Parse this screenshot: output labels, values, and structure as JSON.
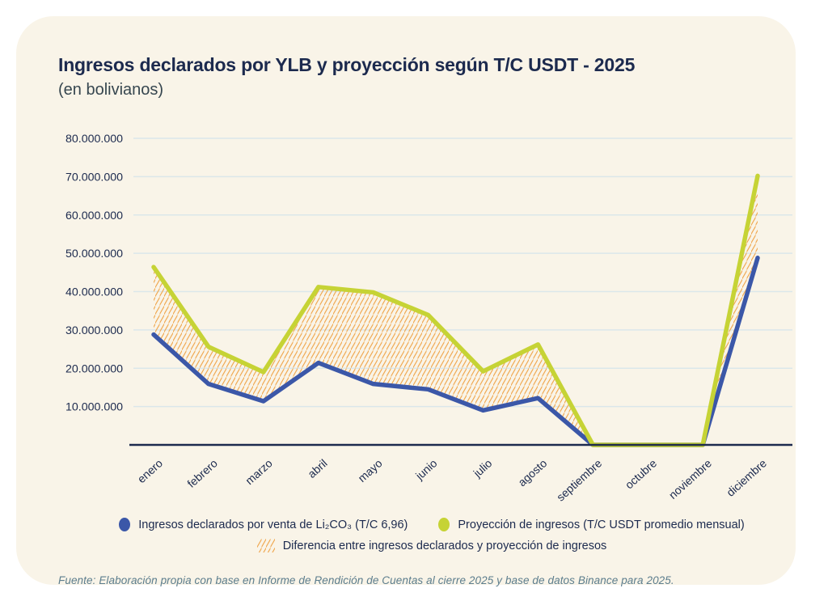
{
  "card": {
    "title": "Ingresos declarados por YLB y proyección según T/C USDT - 2025",
    "subtitle": "(en bolivianos)",
    "source_note": "Fuente: Elaboración propia con base en Informe de Rendición de Cuentas al cierre 2025 y base de datos Binance para 2025."
  },
  "colors": {
    "card_bg": "#f9f4e8",
    "title": "#1c2a4e",
    "gridline": "#dbe7ea",
    "axis": "#1c2a4e",
    "tick_label": "#1c2a4e",
    "source_note": "#5c7d8d"
  },
  "chart_data": {
    "type": "line",
    "title": "Ingresos declarados por YLB y proyección según T/C USDT - 2025",
    "subtitle": "(en bolivianos)",
    "categories": [
      "enero",
      "febrero",
      "marzo",
      "abril",
      "mayo",
      "junio",
      "julio",
      "agosto",
      "septiembre",
      "octubre",
      "noviembre",
      "diciembre"
    ],
    "series": [
      {
        "name": "Ingresos declarados por venta de Li₂CO₃ (T/C 6,96)",
        "color": "#3b57a8",
        "values": [
          28800000,
          15900000,
          11400000,
          21400000,
          15900000,
          14500000,
          9000000,
          12200000,
          0,
          0,
          0,
          48800000
        ]
      },
      {
        "name": "Proyección de ingresos (T/C USDT promedio mensual)",
        "color": "#c6d335",
        "values": [
          46400000,
          25600000,
          19000000,
          41200000,
          39800000,
          33900000,
          19200000,
          26200000,
          0,
          0,
          0,
          70200000
        ]
      }
    ],
    "difference_band": {
      "label": "Diferencia entre ingresos declarados y proyección de ingresos",
      "style": "diagonal-hatch",
      "color": "#f0a850"
    },
    "ylim": [
      0,
      80000000
    ],
    "ytick_step": 10000000,
    "ytick_labels": [
      "80.000.000",
      "70.000.000",
      "60.000.000",
      "50.000.000",
      "40.000.000",
      "30.000.000",
      "20.000.000",
      "10.000.000"
    ],
    "grid": true,
    "legend_position": "bottom"
  }
}
